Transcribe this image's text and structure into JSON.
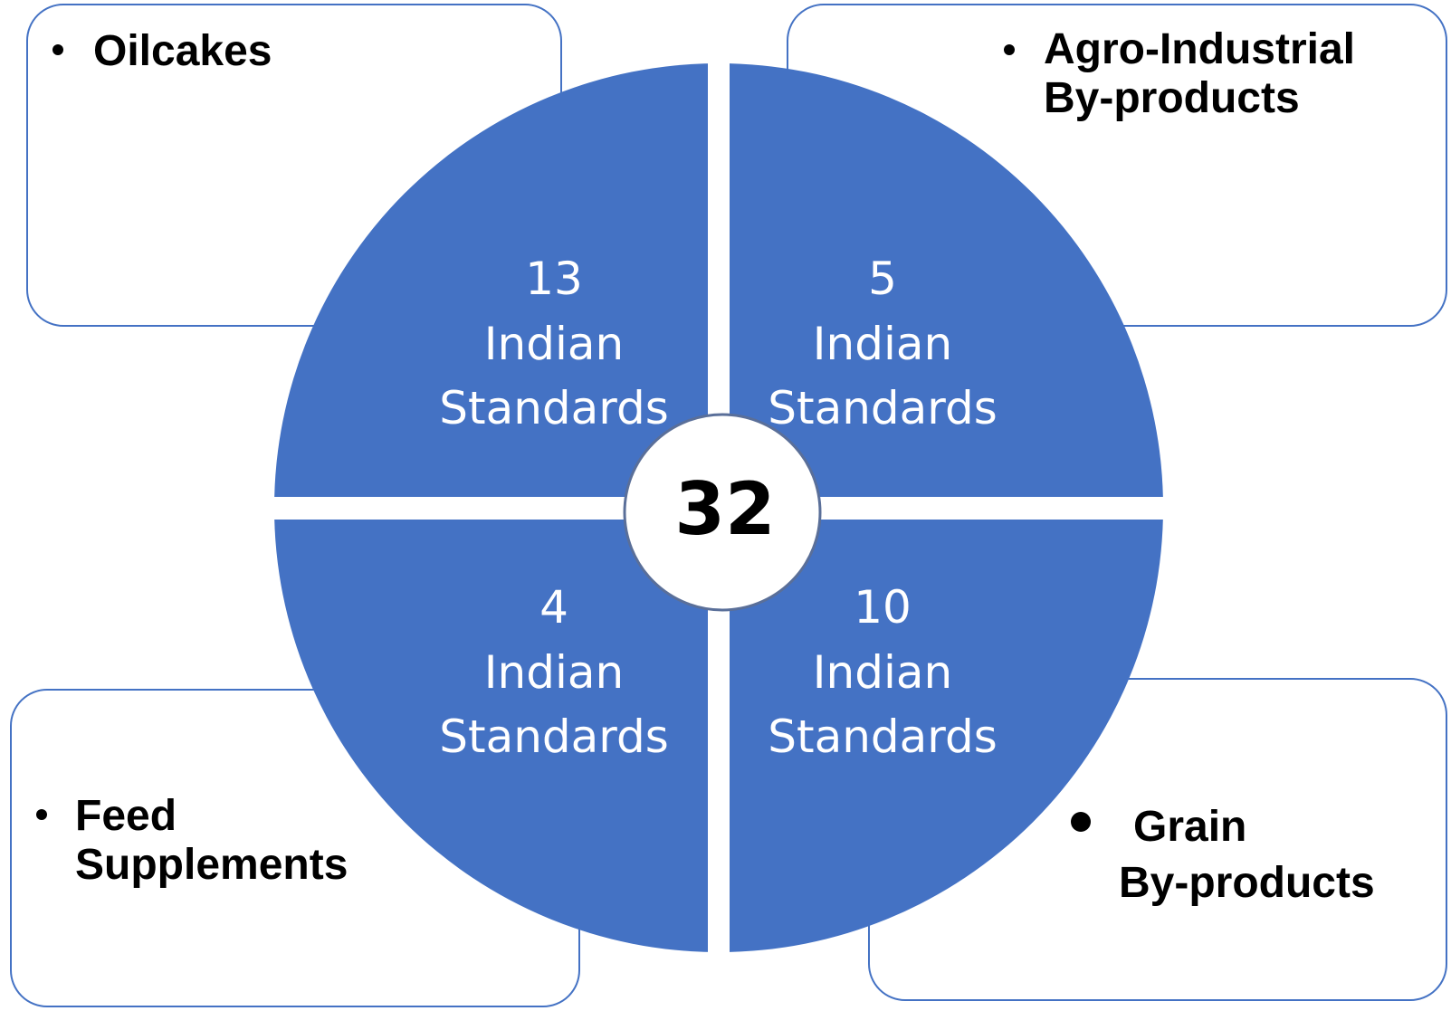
{
  "total": 32,
  "quadrants": [
    {
      "label": [
        "Oilcakes"
      ],
      "count": 13,
      "unit": [
        "Indian",
        "Standards"
      ]
    },
    {
      "label": [
        "Agro-Industrial",
        "By-products"
      ],
      "count": 5,
      "unit": [
        "Indian",
        "Standards"
      ]
    },
    {
      "label": [
        "Feed",
        "Supplements"
      ],
      "count": 4,
      "unit": [
        "Indian",
        "Standards"
      ]
    },
    {
      "label": [
        "Grain",
        "By-products"
      ],
      "count": 10,
      "unit": [
        "Indian",
        "Standards"
      ]
    }
  ]
}
